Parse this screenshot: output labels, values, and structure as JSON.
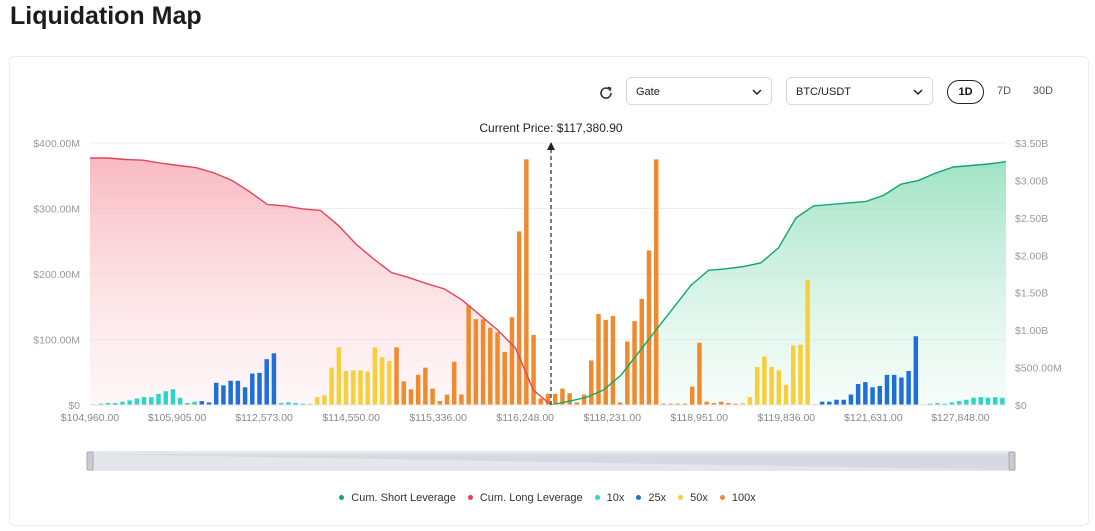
{
  "page": {
    "title": "Liquidation Map"
  },
  "controls": {
    "refresh_icon": "refresh-icon",
    "exchange": {
      "value": "Gate"
    },
    "pair": {
      "value": "BTC/USDT"
    },
    "timeframes": [
      {
        "label": "1D",
        "active": true
      },
      {
        "label": "7D",
        "active": false
      },
      {
        "label": "30D",
        "active": false
      }
    ]
  },
  "chart_data": {
    "type": "bar",
    "current_price_label": "Current Price: $117,380.90",
    "x_tick_labels": [
      "$104,960.00",
      "$105,905.00",
      "$112,573.00",
      "$114,550.00",
      "$115,336.00",
      "$116,248.00",
      "$118,231.00",
      "$118,951.00",
      "$119,836.00",
      "$121,631.00",
      "$127,848.00"
    ],
    "y_left": {
      "ticks": [
        "$0",
        "$100.00M",
        "$200.00M",
        "$300.00M",
        "$400.00M"
      ],
      "range": [
        0,
        400
      ],
      "unit": "M"
    },
    "y_right": {
      "ticks": [
        "$0",
        "$500.00M",
        "$1.00B",
        "$1.50B",
        "$2.00B",
        "$2.50B",
        "$3.00B",
        "$3.50B"
      ],
      "range": [
        0,
        3.5
      ],
      "unit": "B"
    },
    "grid": true,
    "legend_position": "bottom",
    "colors": {
      "10x": "#2ed3c9",
      "25x": "#1f6fd9",
      "50x": "#f7cf3b",
      "100x": "#ef8a2e",
      "short": "#12a66f",
      "long": "#e0455a"
    },
    "bar_groups": [
      {
        "leverage": "10x",
        "values": [
          1,
          2,
          3,
          3,
          5,
          7,
          10,
          12,
          12,
          17,
          21,
          24,
          11,
          3,
          5
        ]
      },
      {
        "leverage": "25x",
        "values": [
          6,
          4,
          34,
          30,
          37,
          37,
          27,
          48,
          49,
          70,
          79
        ]
      },
      {
        "leverage": "10x",
        "values": [
          3,
          4,
          3,
          2
        ]
      },
      {
        "leverage": "50x",
        "values": [
          2,
          12,
          15,
          57,
          88,
          52,
          53,
          53,
          51,
          88,
          73,
          67
        ]
      },
      {
        "leverage": "100x",
        "values": [
          88,
          36,
          24,
          46,
          57,
          25,
          6,
          16,
          66,
          16,
          152,
          131,
          131,
          118,
          111,
          81,
          134,
          265,
          375,
          107
        ]
      },
      {
        "leverage": "100x",
        "values": [
          10,
          17,
          17,
          25,
          18,
          4,
          16,
          68,
          139,
          130,
          136,
          4,
          97,
          128,
          162,
          236,
          375,
          2,
          2,
          2,
          2,
          28,
          95,
          5,
          3,
          5,
          3,
          2
        ]
      },
      {
        "leverage": "50x",
        "values": [
          3,
          12,
          58,
          74,
          58,
          53,
          31,
          91,
          92,
          191
        ]
      },
      {
        "leverage": "25x",
        "values": [
          1,
          5,
          5,
          8,
          8,
          16,
          32,
          35,
          27,
          29,
          46,
          46,
          42,
          52,
          105
        ]
      },
      {
        "leverage": "10x",
        "values": [
          1,
          2,
          3,
          2,
          4,
          6,
          8,
          11,
          12,
          11,
          12,
          11
        ]
      }
    ],
    "series": [
      {
        "name": "Cum. Long Leverage",
        "values": [
          3.3,
          3.3,
          3.28,
          3.27,
          3.23,
          3.2,
          3.17,
          3.1,
          3.0,
          2.85,
          2.68,
          2.66,
          2.62,
          2.6,
          2.4,
          2.15,
          1.95,
          1.77,
          1.7,
          1.62,
          1.55,
          1.4,
          1.2,
          1.0,
          0.76,
          0.2,
          0.0
        ]
      },
      {
        "name": "Cum. Short Leverage",
        "values": [
          0.0,
          0.05,
          0.1,
          0.2,
          0.4,
          0.7,
          1.0,
          1.3,
          1.6,
          1.8,
          1.82,
          1.85,
          1.9,
          2.1,
          2.5,
          2.66,
          2.68,
          2.7,
          2.72,
          2.8,
          2.95,
          3.0,
          3.1,
          3.18,
          3.2,
          3.22,
          3.25
        ]
      }
    ],
    "legend": [
      {
        "name": "Cum. Short Leverage",
        "color": "#12a66f"
      },
      {
        "name": "Cum. Long Leverage",
        "color": "#e0455a"
      },
      {
        "name": "10x",
        "color": "#2ed3c9"
      },
      {
        "name": "25x",
        "color": "#1f6fd9"
      },
      {
        "name": "50x",
        "color": "#f7cf3b"
      },
      {
        "name": "100x",
        "color": "#ef8a2e"
      }
    ]
  }
}
